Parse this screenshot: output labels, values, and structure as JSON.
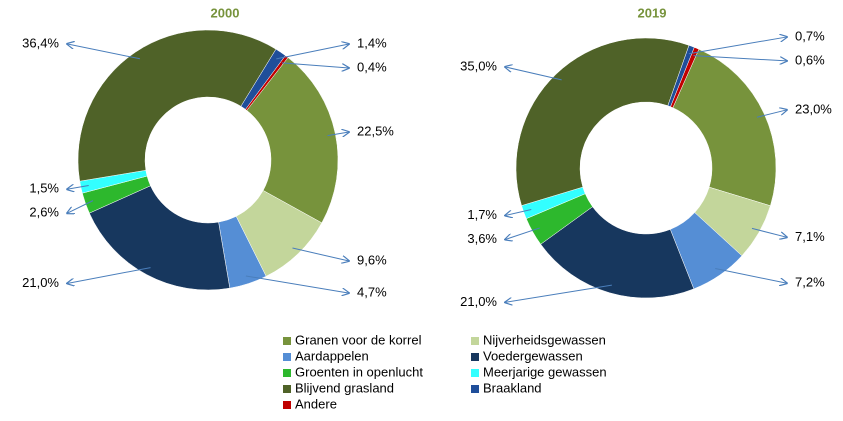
{
  "chart_data": [
    {
      "type": "pie",
      "title": "2000",
      "categories": [
        "Granen voor de korrel",
        "Nijverheidsgewassen",
        "Aardappelen",
        "Voedergewassen",
        "Groenten in openlucht",
        "Meerjarige gewassen",
        "Blijvend grasland",
        "Braakland",
        "Andere"
      ],
      "values": [
        22.5,
        9.6,
        4.7,
        21.0,
        2.6,
        1.5,
        36.4,
        1.4,
        0.4
      ],
      "value_labels": [
        "22,5%",
        "9,6%",
        "4,7%",
        "21,0%",
        "2,6%",
        "1,5%",
        "36,4%",
        "1,4%",
        "0,4%"
      ],
      "colors": [
        "#77933c",
        "#c3d69b",
        "#558ed5",
        "#17375e",
        "#2db82d",
        "#33ffff",
        "#4f6228",
        "#1f4e9a",
        "#c00000"
      ]
    },
    {
      "type": "pie",
      "title": "2019",
      "categories": [
        "Granen voor de korrel",
        "Nijverheidsgewassen",
        "Aardappelen",
        "Voedergewassen",
        "Groenten in openlucht",
        "Meerjarige gewassen",
        "Blijvend grasland",
        "Braakland",
        "Andere"
      ],
      "values": [
        23.0,
        7.1,
        7.2,
        21.0,
        3.6,
        1.7,
        35.0,
        0.7,
        0.6
      ],
      "value_labels": [
        "23,0%",
        "7,1%",
        "7,2%",
        "21,0%",
        "3,6%",
        "1,7%",
        "35,0%",
        "0,7%",
        "0,6%"
      ],
      "colors": [
        "#77933c",
        "#c3d69b",
        "#558ed5",
        "#17375e",
        "#2db82d",
        "#33ffff",
        "#4f6228",
        "#1f4e9a",
        "#c00000"
      ]
    }
  ]
}
